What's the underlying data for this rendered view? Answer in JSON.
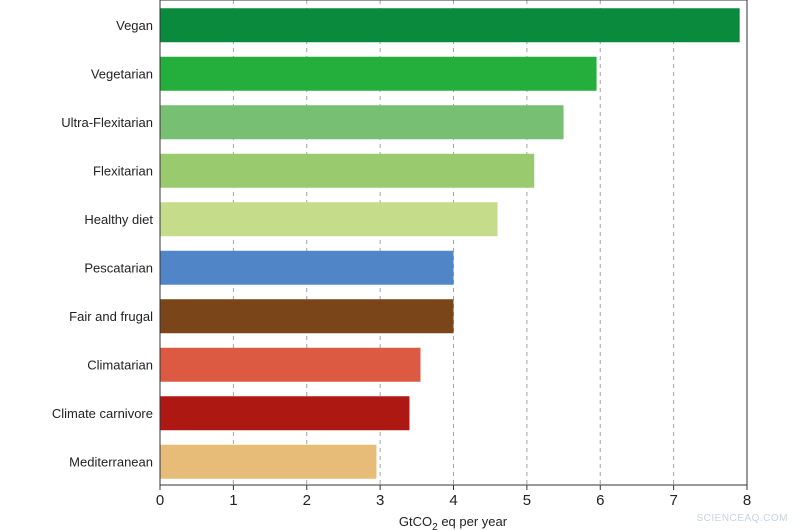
{
  "chart_data": {
    "type": "bar",
    "orientation": "horizontal",
    "categories": [
      "Vegan",
      "Vegetarian",
      "Ultra-Flexitarian",
      "Flexitarian",
      "Healthy diet",
      "Pescatarian",
      "Fair and frugal",
      "Climatarian",
      "Climate carnivore",
      "Mediterranean"
    ],
    "values": [
      7.9,
      5.95,
      5.5,
      5.1,
      4.6,
      4.0,
      4.0,
      3.55,
      3.4,
      2.95
    ],
    "colors": [
      "#0a8a3c",
      "#24ae3c",
      "#76bf73",
      "#99cb6e",
      "#c5dc8a",
      "#5086c8",
      "#7a4519",
      "#db5a41",
      "#ad1812",
      "#e6bc78"
    ],
    "xlabel_parts": [
      "GtCO",
      "2",
      " eq per year"
    ],
    "ylabel": "",
    "title": "",
    "xlim": [
      0,
      8
    ],
    "xticks": [
      0,
      1,
      2,
      3,
      4,
      5,
      6,
      7,
      8
    ],
    "grid": "vertical-dashed"
  },
  "watermark": "SCIENCEAQ.COM"
}
